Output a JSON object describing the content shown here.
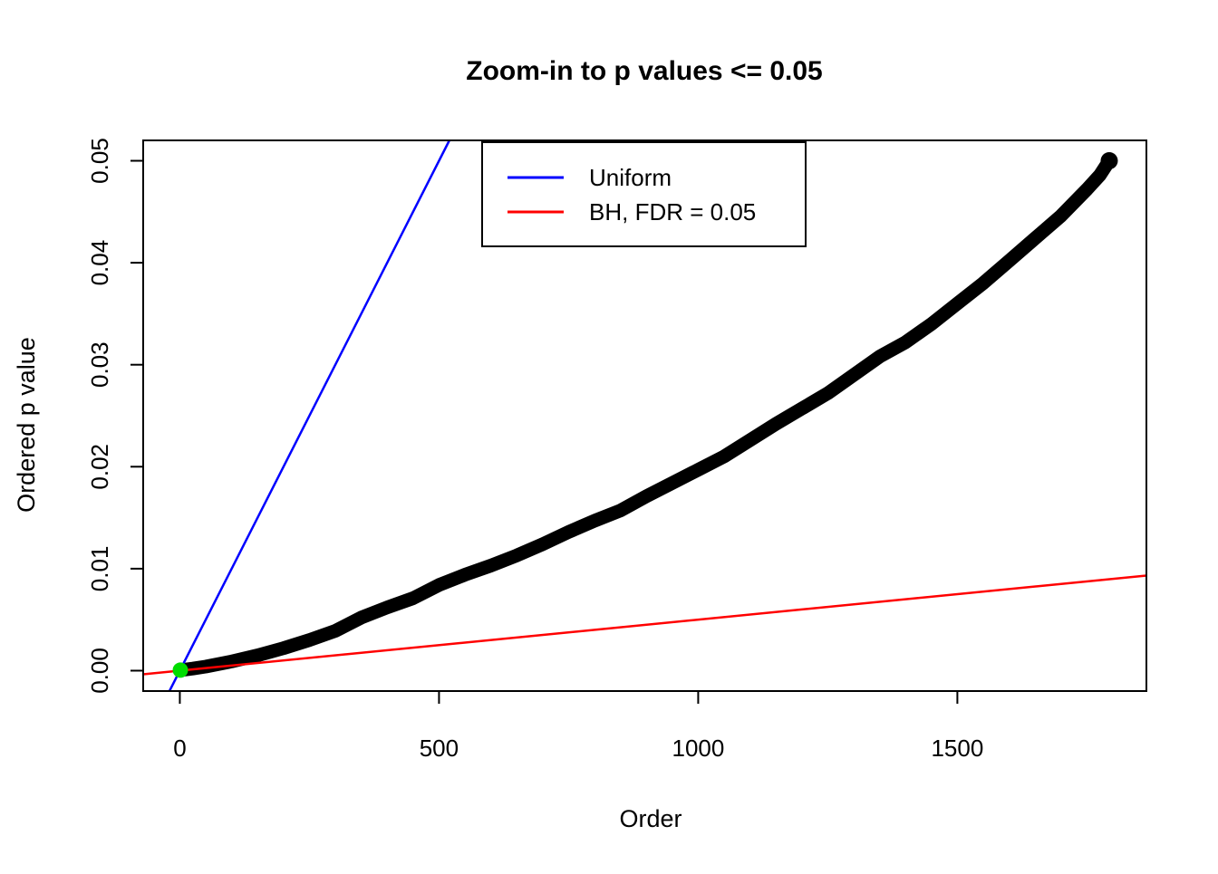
{
  "figure": {
    "title": "Zoom-in to p values <= 0.05",
    "xlabel": "Order",
    "ylabel": "Ordered p value",
    "background_color": "#FFFFFF",
    "frame_color": "#000000"
  },
  "legend": {
    "entries": [
      {
        "label": "Uniform",
        "color": "#0000FF"
      },
      {
        "label": "BH, FDR = 0.05",
        "color": "#FF0000"
      }
    ]
  },
  "chart_data": {
    "type": "scatter",
    "title": "Zoom-in to p values <= 0.05",
    "xlabel": "Order",
    "ylabel": "Ordered p value",
    "xlim": [
      -70.7,
      1864.7
    ],
    "ylim": [
      -0.002,
      0.052
    ],
    "x_ticks": [
      {
        "v": 0,
        "label": "0"
      },
      {
        "v": 500,
        "label": "500"
      },
      {
        "v": 1000,
        "label": "1000"
      },
      {
        "v": 1500,
        "label": "1500"
      }
    ],
    "y_ticks": [
      {
        "v": 0.0,
        "label": "0.00"
      },
      {
        "v": 0.01,
        "label": "0.01"
      },
      {
        "v": 0.02,
        "label": "0.02"
      },
      {
        "v": 0.03,
        "label": "0.03"
      },
      {
        "v": 0.04,
        "label": "0.04"
      },
      {
        "v": 0.05,
        "label": "0.05"
      }
    ],
    "grid": false,
    "legend_position": "top-inside",
    "series": [
      {
        "name": "sorted-p-values",
        "type": "thick-line",
        "color": "#000000",
        "stroke_width": 15,
        "end_dot_radius": 9.5,
        "max_order": 1793,
        "points": [
          [
            1,
            5e-05
          ],
          [
            25,
            0.0002
          ],
          [
            50,
            0.0004
          ],
          [
            100,
            0.0009
          ],
          [
            150,
            0.0015
          ],
          [
            200,
            0.0022
          ],
          [
            250,
            0.003
          ],
          [
            300,
            0.0039
          ],
          [
            350,
            0.0052
          ],
          [
            400,
            0.0062
          ],
          [
            450,
            0.0071
          ],
          [
            500,
            0.0084
          ],
          [
            550,
            0.0094
          ],
          [
            600,
            0.0103
          ],
          [
            650,
            0.0113
          ],
          [
            700,
            0.0124
          ],
          [
            750,
            0.0136
          ],
          [
            800,
            0.0147
          ],
          [
            850,
            0.0157
          ],
          [
            900,
            0.0171
          ],
          [
            950,
            0.0184
          ],
          [
            1000,
            0.0197
          ],
          [
            1050,
            0.021
          ],
          [
            1100,
            0.0226
          ],
          [
            1150,
            0.0242
          ],
          [
            1200,
            0.0257
          ],
          [
            1250,
            0.0272
          ],
          [
            1300,
            0.029
          ],
          [
            1350,
            0.0308
          ],
          [
            1400,
            0.0322
          ],
          [
            1450,
            0.034
          ],
          [
            1500,
            0.036
          ],
          [
            1550,
            0.038
          ],
          [
            1600,
            0.0402
          ],
          [
            1650,
            0.0424
          ],
          [
            1700,
            0.0446
          ],
          [
            1750,
            0.0472
          ],
          [
            1775,
            0.0486
          ],
          [
            1793,
            0.05
          ]
        ]
      },
      {
        "name": "uniform-line",
        "type": "abline",
        "label": "Uniform",
        "color": "#0000FF",
        "stroke_width": 2.5,
        "slope": 0.0001,
        "intercept": 0
      },
      {
        "name": "bh-line",
        "type": "abline",
        "label": "BH, FDR = 0.05",
        "color": "#FF0000",
        "stroke_width": 2.5,
        "slope": 5e-06,
        "intercept": 0
      },
      {
        "name": "min-p-highlight",
        "type": "point",
        "color": "#00DD00",
        "x": 1,
        "y": 5e-05,
        "radius": 8.5
      }
    ]
  }
}
